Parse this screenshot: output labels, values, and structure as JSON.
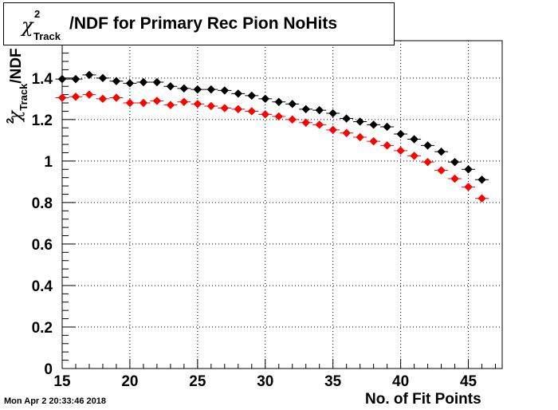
{
  "title": {
    "symbol": "χ",
    "superscript": "2",
    "subscript": "Track",
    "text": "/NDF for Primary Rec Pion NoHits"
  },
  "ylabel": {
    "symbol": "χ",
    "superscript": "2",
    "subscript": "Track",
    "text": "/NDF"
  },
  "timestamp": "Mon Apr  2 20:33:46 2018",
  "chart_data": {
    "type": "scatter",
    "title": "χ²_Track/NDF for Primary Rec Pion NoHits",
    "xlabel": "No. of Fit Points",
    "ylabel": "χ²_Track/NDF",
    "xlim": [
      15,
      47.5
    ],
    "ylim": [
      0,
      1.58
    ],
    "xticks": [
      15,
      20,
      25,
      30,
      35,
      40,
      45
    ],
    "yticks": [
      0,
      0.2,
      0.4,
      0.6,
      0.8,
      1,
      1.2,
      1.4
    ],
    "ytick_labels": [
      "0",
      "0.2",
      "0.4",
      "0.6",
      "0.8",
      "1",
      "1.2",
      "1.4"
    ],
    "grid": true,
    "series": [
      {
        "color": "#000000",
        "x": [
          15,
          16,
          17,
          18,
          19,
          20,
          21,
          22,
          23,
          24,
          25,
          26,
          27,
          28,
          29,
          30,
          31,
          32,
          33,
          34,
          35,
          36,
          37,
          38,
          39,
          40,
          41,
          42,
          43,
          44,
          45,
          46
        ],
        "y": [
          1.395,
          1.395,
          1.415,
          1.4,
          1.385,
          1.375,
          1.38,
          1.38,
          1.36,
          1.35,
          1.345,
          1.345,
          1.34,
          1.325,
          1.315,
          1.3,
          1.285,
          1.275,
          1.25,
          1.245,
          1.23,
          1.205,
          1.19,
          1.175,
          1.165,
          1.13,
          1.105,
          1.075,
          1.045,
          0.995,
          0.96,
          0.91
        ]
      },
      {
        "color": "#ff0000",
        "x": [
          15,
          16,
          17,
          18,
          19,
          20,
          21,
          22,
          23,
          24,
          25,
          26,
          27,
          28,
          29,
          30,
          31,
          32,
          33,
          34,
          35,
          36,
          37,
          38,
          39,
          40,
          41,
          42,
          43,
          44,
          45,
          46
        ],
        "y": [
          1.305,
          1.31,
          1.32,
          1.3,
          1.305,
          1.28,
          1.28,
          1.29,
          1.27,
          1.285,
          1.275,
          1.265,
          1.255,
          1.25,
          1.24,
          1.225,
          1.215,
          1.2,
          1.185,
          1.175,
          1.15,
          1.135,
          1.115,
          1.095,
          1.075,
          1.05,
          1.025,
          0.995,
          0.955,
          0.915,
          0.875,
          0.82
        ]
      }
    ]
  }
}
